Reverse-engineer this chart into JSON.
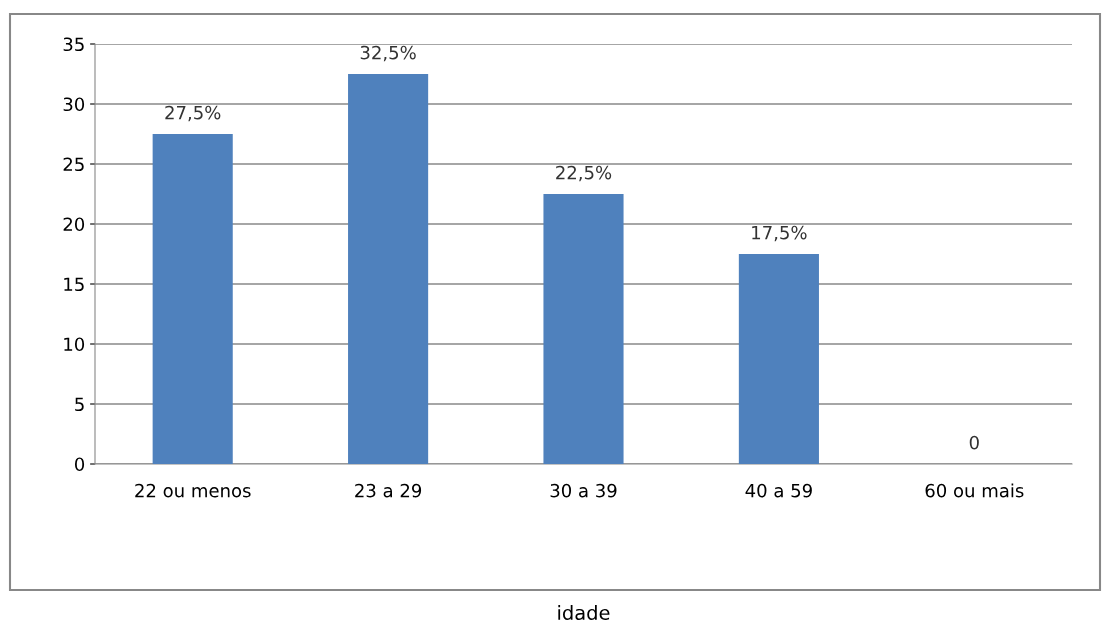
{
  "chart_data": {
    "type": "bar",
    "annotations": [
      "idade"
    ],
    "categories": [
      "22 ou menos",
      "23 a 29",
      "30 a 39",
      "40 a 59",
      "60 ou mais"
    ],
    "values": [
      27.5,
      32.5,
      22.5,
      17.5,
      0
    ],
    "value_labels": [
      "27,5%",
      "32,5%",
      "22,5%",
      "17,5%",
      "0"
    ],
    "color": "#4f81bd",
    "ylim": [
      0,
      35
    ],
    "yticks": [
      0,
      5,
      10,
      15,
      20,
      25,
      30,
      35
    ],
    "grid": "y",
    "legend": false
  }
}
